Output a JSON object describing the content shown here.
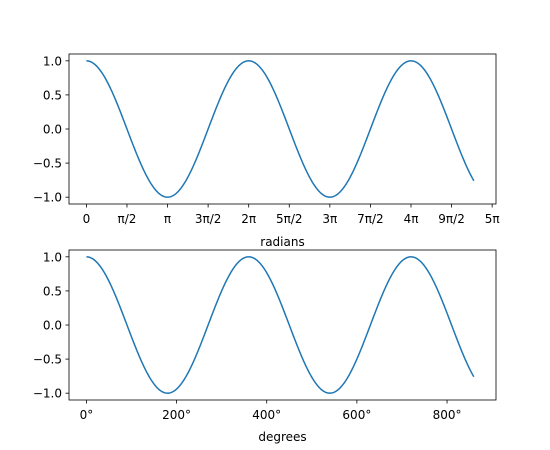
{
  "chart_data": [
    {
      "type": "line",
      "xlabel": "radians",
      "ylabel": "",
      "title": "",
      "xlim": [
        -0.6732,
        15.857
      ],
      "ylim": [
        -1.1,
        1.1
      ],
      "xticks": [
        {
          "value": 0,
          "label": "0"
        },
        {
          "value": 1.5708,
          "label": "π/2"
        },
        {
          "value": 3.1416,
          "label": "π"
        },
        {
          "value": 4.7124,
          "label": "3π/2"
        },
        {
          "value": 6.2832,
          "label": "2π"
        },
        {
          "value": 7.854,
          "label": "5π/2"
        },
        {
          "value": 9.4248,
          "label": "3π"
        },
        {
          "value": 10.9956,
          "label": "7π/2"
        },
        {
          "value": 12.5664,
          "label": "4π"
        },
        {
          "value": 14.1372,
          "label": "9π/2"
        },
        {
          "value": 15.708,
          "label": "5π"
        }
      ],
      "yticks": [
        {
          "value": -1.0,
          "label": "−1.0"
        },
        {
          "value": -0.5,
          "label": "−0.5"
        },
        {
          "value": 0.0,
          "label": "0.0"
        },
        {
          "value": 0.5,
          "label": "0.5"
        },
        {
          "value": 1.0,
          "label": "1.0"
        }
      ],
      "series": [
        {
          "function": "cos",
          "x_start": 0,
          "x_end": 15,
          "color": "#1f77b4"
        }
      ]
    },
    {
      "type": "line",
      "xlabel": "degrees",
      "ylabel": "",
      "title": "",
      "xlim": [
        -38.6,
        908.6
      ],
      "ylim": [
        -1.1,
        1.1
      ],
      "xticks": [
        {
          "value": 0,
          "label": "0°"
        },
        {
          "value": 200,
          "label": "200°"
        },
        {
          "value": 400,
          "label": "400°"
        },
        {
          "value": 600,
          "label": "600°"
        },
        {
          "value": 800,
          "label": "800°"
        }
      ],
      "yticks": [
        {
          "value": -1.0,
          "label": "−1.0"
        },
        {
          "value": -0.5,
          "label": "−0.5"
        },
        {
          "value": 0.0,
          "label": "0.0"
        },
        {
          "value": 0.5,
          "label": "0.5"
        },
        {
          "value": 1.0,
          "label": "1.0"
        }
      ],
      "series": [
        {
          "function": "cos_deg",
          "x_start": 0,
          "x_end": 859.4,
          "color": "#1f77b4"
        }
      ]
    }
  ]
}
